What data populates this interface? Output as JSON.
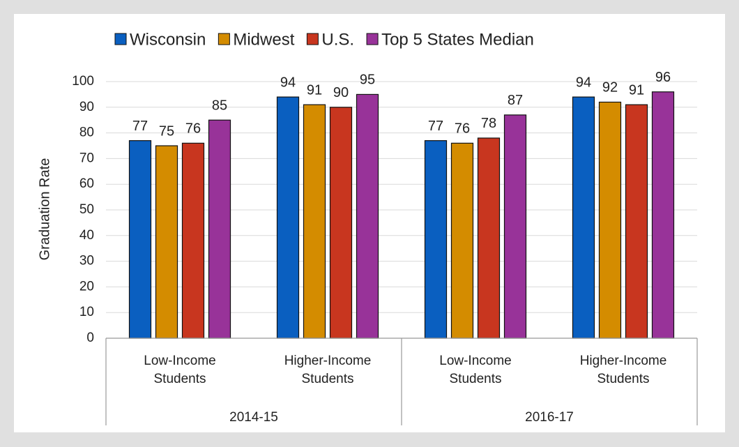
{
  "chart_data": {
    "type": "bar",
    "y_label": "Graduation Rate",
    "categories": [
      "Low-Income Students",
      "Higher-Income Students",
      "Low-Income Students",
      "Higher-Income Students"
    ],
    "groups": [
      "2014-15",
      "2016-17"
    ],
    "series": [
      {
        "name": "Wisconsin",
        "color": "#0a5fc0",
        "values": [
          77,
          94,
          77,
          94
        ]
      },
      {
        "name": "Midwest",
        "color": "#d48c00",
        "values": [
          75,
          91,
          76,
          92
        ]
      },
      {
        "name": "U.S.",
        "color": "#c8361f",
        "values": [
          76,
          90,
          78,
          91
        ]
      },
      {
        "name": "Top 5 States Median",
        "color": "#983399",
        "values": [
          85,
          95,
          87,
          96
        ]
      }
    ],
    "ylim": [
      0,
      100
    ],
    "yticks": [
      0,
      10,
      20,
      30,
      40,
      50,
      60,
      70,
      80,
      90,
      100
    ],
    "grid": true,
    "legend": "top"
  }
}
